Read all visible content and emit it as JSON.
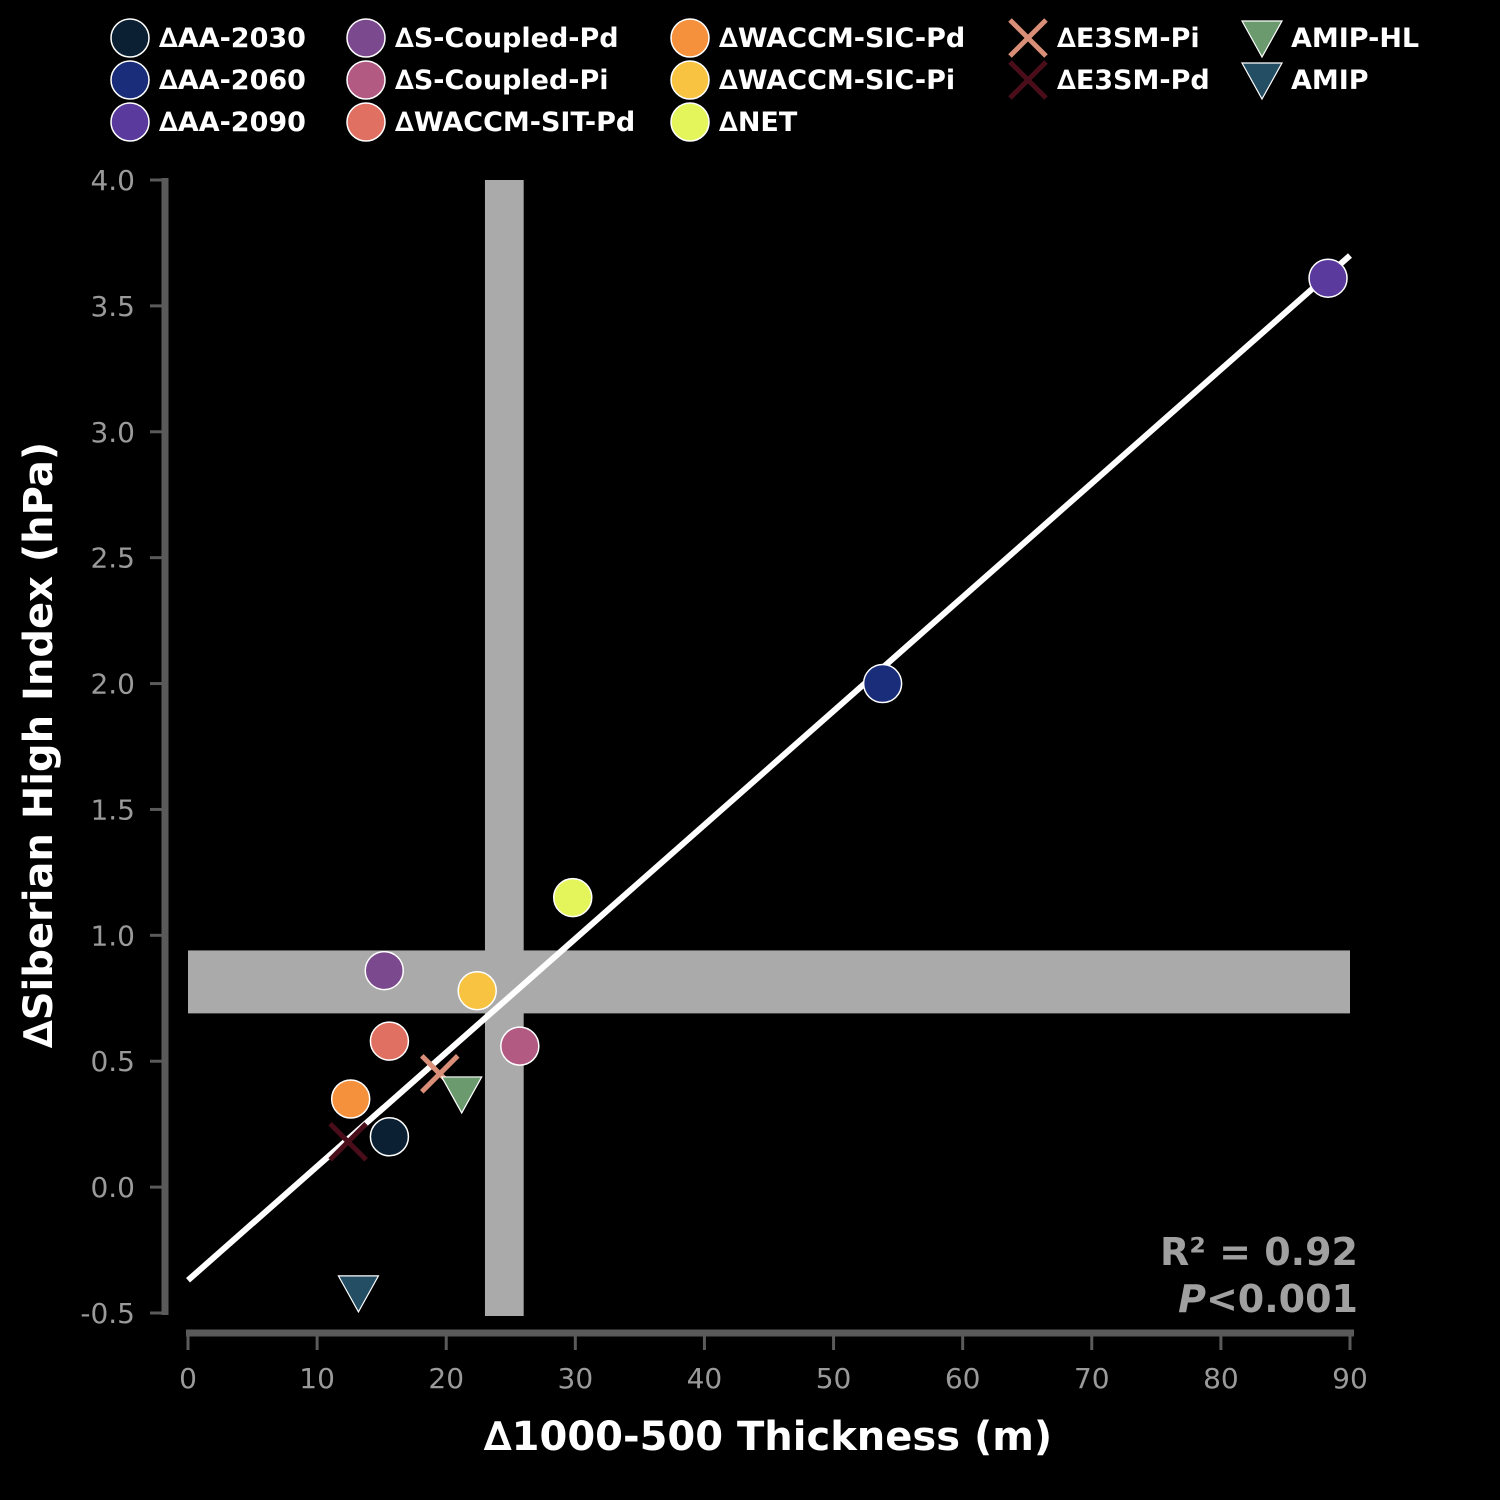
{
  "chart_data": {
    "type": "scatter",
    "xlabel": "∆1000-500 Thickness (m)",
    "ylabel": "∆Siberian High Index (hPa)",
    "xlim": [
      0,
      90
    ],
    "ylim": [
      -0.5,
      4.0
    ],
    "xticks": [
      "0",
      "10",
      "20",
      "30",
      "40",
      "50",
      "60",
      "70",
      "80",
      "90"
    ],
    "yticks": [
      "-0.5",
      "0.0",
      "0.5",
      "1.0",
      "1.5",
      "2.0",
      "2.5",
      "3.0",
      "3.5",
      "4.0"
    ],
    "grid": false,
    "legend_position": "top",
    "series": [
      {
        "name": "∆AA-2030",
        "marker": "circle",
        "color": "#0b2133",
        "x": 15.6,
        "y": 0.2
      },
      {
        "name": "∆AA-2060",
        "marker": "circle",
        "color": "#1a2d7a",
        "x": 53.8,
        "y": 2.0
      },
      {
        "name": "∆AA-2090",
        "marker": "circle",
        "color": "#5b3a9e",
        "x": 88.3,
        "y": 3.61
      },
      {
        "name": "∆S-Coupled-Pd",
        "marker": "circle",
        "color": "#7b4a8e",
        "x": 15.2,
        "y": 0.86
      },
      {
        "name": "∆S-Coupled-Pi",
        "marker": "circle",
        "color": "#b35a82",
        "x": 25.7,
        "y": 0.56
      },
      {
        "name": "∆WACCM-SIT-Pd",
        "marker": "circle",
        "color": "#e07062",
        "x": 15.6,
        "y": 0.58
      },
      {
        "name": "∆WACCM-SIC-Pd",
        "marker": "circle",
        "color": "#f5913d",
        "x": 12.6,
        "y": 0.35
      },
      {
        "name": "∆WACCM-SIC-Pi",
        "marker": "circle",
        "color": "#f7c340",
        "x": 22.4,
        "y": 0.78
      },
      {
        "name": "∆NET",
        "marker": "circle",
        "color": "#e3f55a",
        "x": 29.8,
        "y": 1.15
      },
      {
        "name": "∆E3SM-Pi",
        "marker": "x",
        "color": "#d98e78",
        "x": 19.5,
        "y": 0.45
      },
      {
        "name": "∆E3SM-Pd",
        "marker": "x",
        "color": "#4a0e1a",
        "x": 12.4,
        "y": 0.18
      },
      {
        "name": "AMIP-HL",
        "marker": "triangle-down",
        "color": "#6a9a6e",
        "x": 21.2,
        "y": 0.37
      },
      {
        "name": "AMIP",
        "marker": "triangle-down",
        "color": "#244e64",
        "x": 13.2,
        "y": -0.42
      }
    ],
    "regression_line": {
      "x": [
        0,
        90
      ],
      "y": [
        -0.37,
        3.7
      ],
      "color": "#ffffff"
    },
    "bands": {
      "vertical": {
        "x": [
          23.0,
          26.0
        ],
        "color": "#aaaaaa"
      },
      "horizontal": {
        "y": [
          0.69,
          0.94
        ],
        "color": "#aaaaaa"
      }
    },
    "stats": {
      "r2_label": "R² = 0.92",
      "p_italic": "P",
      "p_rest": "<0.001"
    }
  }
}
